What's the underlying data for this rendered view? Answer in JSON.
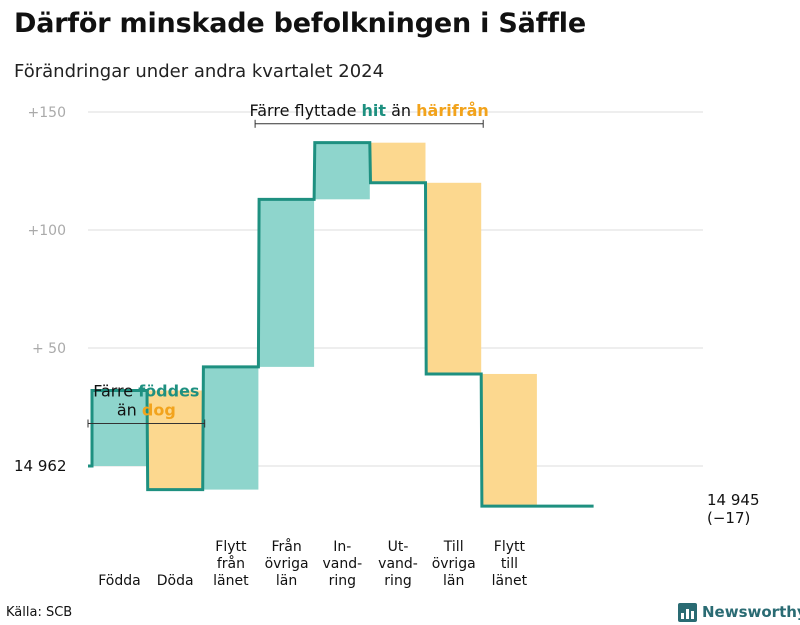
{
  "title": "Därför minskade befolkningen i Säffle",
  "subtitle": "Förändringar under andra kvartalet 2024",
  "source": "Källa: SCB",
  "brand": {
    "name": "Newsworthy",
    "icon": "bar-chart-logo-icon"
  },
  "colors": {
    "increase": "#8ed5cc",
    "decrease": "#fcd88f",
    "line": "#1e9080",
    "teal_text": "#1e9080",
    "orange_text": "#f2a31c",
    "grid": "#dddddd",
    "tick": "#aaaaaa"
  },
  "chart_data": {
    "type": "waterfall",
    "title": "Därför minskade befolkningen i Säffle",
    "subtitle": "Förändringar under andra kvartalet 2024",
    "baseline": 14962,
    "baseline_label": "14  962",
    "end_value": 14945,
    "end_label": "14 945",
    "change_label": "(−17)",
    "y_axis": {
      "ticks": [
        {
          "value": 150,
          "label": "+150"
        },
        {
          "value": 100,
          "label": "+100"
        },
        {
          "value": 50,
          "label": "+  50"
        }
      ],
      "range": [
        -20,
        155
      ]
    },
    "steps": [
      {
        "category": "Födda",
        "delta": 32,
        "kind": "increase"
      },
      {
        "category": "Döda",
        "delta": -42,
        "kind": "decrease"
      },
      {
        "category": "Flytt från länet",
        "delta": 52,
        "kind": "increase"
      },
      {
        "category": "Från övriga län",
        "delta": 71,
        "kind": "increase"
      },
      {
        "category": "In-vand-ring",
        "delta": 24,
        "kind": "increase"
      },
      {
        "category": "Ut-vand-ring",
        "delta": -17,
        "kind": "decrease"
      },
      {
        "category": "Till övriga län",
        "delta": -81,
        "kind": "decrease"
      },
      {
        "category": "Flytt till länet",
        "delta": -56,
        "kind": "decrease"
      }
    ],
    "category_labels": [
      [
        "Födda"
      ],
      [
        "Döda"
      ],
      [
        "Flytt",
        "från",
        "länet"
      ],
      [
        "Från",
        "övriga",
        "län"
      ],
      [
        "In-",
        "vand-",
        "ring"
      ],
      [
        "Ut-",
        "vand-",
        "ring"
      ],
      [
        "Till",
        "övriga",
        "län"
      ],
      [
        "Flytt",
        "till",
        "länet"
      ]
    ],
    "annotations": [
      {
        "from_step": 0,
        "to_step": 1,
        "level": 18,
        "parts": [
          {
            "text": "Färre ",
            "style": "plain",
            "line": 0
          },
          {
            "text": "föddes",
            "style": "teal",
            "line": 0
          },
          {
            "text": "än ",
            "style": "plain",
            "line": 1
          },
          {
            "text": "dog",
            "style": "orange",
            "line": 1
          }
        ]
      },
      {
        "from_step": 3,
        "to_step": 6,
        "level": 145,
        "parts": [
          {
            "text": "Färre flyttade ",
            "style": "plain",
            "line": 0
          },
          {
            "text": "hit",
            "style": "teal",
            "line": 0
          },
          {
            "text": "  än ",
            "style": "plain",
            "line": 0
          },
          {
            "text": "härifrån",
            "style": "orange",
            "line": 0
          }
        ]
      }
    ]
  }
}
